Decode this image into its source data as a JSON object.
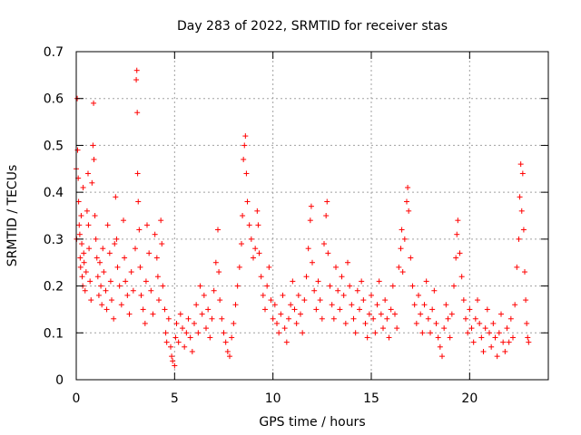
{
  "chart_data": {
    "type": "scatter",
    "title": "Day 283 of 2022, SRMTID for receiver stas",
    "xlabel": "GPS time / hours",
    "ylabel": "SRMTID / TECUs",
    "xlim": [
      0,
      24
    ],
    "ylim": [
      0,
      0.7
    ],
    "xticks": [
      0,
      5,
      10,
      15,
      20
    ],
    "yticks": [
      0,
      0.1,
      0.2,
      0.3,
      0.4,
      0.5,
      0.6,
      0.7
    ],
    "xtick_labels": [
      "0",
      "5",
      "10",
      "15",
      "20"
    ],
    "ytick_labels": [
      "0",
      "0.1",
      "0.2",
      "0.3",
      "0.4",
      "0.5",
      "0.6",
      "0.7"
    ],
    "grid": true,
    "marker": "+",
    "color": "#ff0000",
    "series": [
      {
        "name": "stas",
        "points": [
          [
            0.0,
            0.45
          ],
          [
            0.02,
            0.3
          ],
          [
            0.05,
            0.6
          ],
          [
            0.07,
            0.49
          ],
          [
            0.1,
            0.43
          ],
          [
            0.12,
            0.38
          ],
          [
            0.15,
            0.33
          ],
          [
            0.18,
            0.31
          ],
          [
            0.2,
            0.26
          ],
          [
            0.22,
            0.24
          ],
          [
            0.25,
            0.35
          ],
          [
            0.28,
            0.29
          ],
          [
            0.3,
            0.22
          ],
          [
            0.33,
            0.2
          ],
          [
            0.35,
            0.41
          ],
          [
            0.38,
            0.27
          ],
          [
            0.4,
            0.25
          ],
          [
            0.45,
            0.19
          ],
          [
            0.5,
            0.23
          ],
          [
            0.55,
            0.36
          ],
          [
            0.6,
            0.44
          ],
          [
            0.62,
            0.33
          ],
          [
            0.65,
            0.28
          ],
          [
            0.7,
            0.21
          ],
          [
            0.75,
            0.17
          ],
          [
            0.8,
            0.42
          ],
          [
            0.85,
            0.5
          ],
          [
            0.88,
            0.59
          ],
          [
            0.9,
            0.47
          ],
          [
            0.95,
            0.35
          ],
          [
            1.0,
            0.3
          ],
          [
            1.05,
            0.26
          ],
          [
            1.1,
            0.22
          ],
          [
            1.15,
            0.18
          ],
          [
            1.2,
            0.25
          ],
          [
            1.25,
            0.2
          ],
          [
            1.3,
            0.16
          ],
          [
            1.35,
            0.28
          ],
          [
            1.4,
            0.23
          ],
          [
            1.5,
            0.19
          ],
          [
            1.55,
            0.15
          ],
          [
            1.6,
            0.33
          ],
          [
            1.7,
            0.27
          ],
          [
            1.75,
            0.21
          ],
          [
            1.8,
            0.17
          ],
          [
            1.9,
            0.13
          ],
          [
            1.95,
            0.29
          ],
          [
            2.0,
            0.39
          ],
          [
            2.05,
            0.3
          ],
          [
            2.1,
            0.24
          ],
          [
            2.2,
            0.2
          ],
          [
            2.3,
            0.16
          ],
          [
            2.4,
            0.34
          ],
          [
            2.45,
            0.26
          ],
          [
            2.5,
            0.21
          ],
          [
            2.6,
            0.18
          ],
          [
            2.7,
            0.14
          ],
          [
            2.8,
            0.23
          ],
          [
            2.9,
            0.19
          ],
          [
            3.0,
            0.28
          ],
          [
            3.05,
            0.64
          ],
          [
            3.08,
            0.66
          ],
          [
            3.1,
            0.57
          ],
          [
            3.12,
            0.44
          ],
          [
            3.15,
            0.38
          ],
          [
            3.2,
            0.32
          ],
          [
            3.25,
            0.24
          ],
          [
            3.3,
            0.18
          ],
          [
            3.4,
            0.15
          ],
          [
            3.5,
            0.12
          ],
          [
            3.55,
            0.21
          ],
          [
            3.6,
            0.33
          ],
          [
            3.7,
            0.27
          ],
          [
            3.8,
            0.19
          ],
          [
            3.9,
            0.14
          ],
          [
            4.0,
            0.31
          ],
          [
            4.1,
            0.26
          ],
          [
            4.15,
            0.22
          ],
          [
            4.2,
            0.17
          ],
          [
            4.3,
            0.34
          ],
          [
            4.35,
            0.29
          ],
          [
            4.4,
            0.2
          ],
          [
            4.5,
            0.15
          ],
          [
            4.55,
            0.1
          ],
          [
            4.6,
            0.08
          ],
          [
            4.7,
            0.13
          ],
          [
            4.8,
            0.07
          ],
          [
            4.85,
            0.05
          ],
          [
            4.9,
            0.04
          ],
          [
            5.0,
            0.03
          ],
          [
            5.05,
            0.09
          ],
          [
            5.1,
            0.12
          ],
          [
            5.2,
            0.08
          ],
          [
            5.3,
            0.14
          ],
          [
            5.4,
            0.11
          ],
          [
            5.5,
            0.07
          ],
          [
            5.6,
            0.1
          ],
          [
            5.7,
            0.13
          ],
          [
            5.8,
            0.09
          ],
          [
            5.9,
            0.06
          ],
          [
            6.0,
            0.12
          ],
          [
            6.1,
            0.16
          ],
          [
            6.2,
            0.1
          ],
          [
            6.3,
            0.2
          ],
          [
            6.4,
            0.14
          ],
          [
            6.5,
            0.18
          ],
          [
            6.6,
            0.11
          ],
          [
            6.7,
            0.15
          ],
          [
            6.8,
            0.09
          ],
          [
            6.9,
            0.13
          ],
          [
            7.0,
            0.19
          ],
          [
            7.1,
            0.25
          ],
          [
            7.2,
            0.32
          ],
          [
            7.25,
            0.23
          ],
          [
            7.3,
            0.17
          ],
          [
            7.4,
            0.13
          ],
          [
            7.5,
            0.1
          ],
          [
            7.6,
            0.08
          ],
          [
            7.7,
            0.06
          ],
          [
            7.8,
            0.05
          ],
          [
            7.9,
            0.09
          ],
          [
            8.0,
            0.12
          ],
          [
            8.1,
            0.16
          ],
          [
            8.2,
            0.2
          ],
          [
            8.3,
            0.24
          ],
          [
            8.4,
            0.29
          ],
          [
            8.45,
            0.35
          ],
          [
            8.5,
            0.47
          ],
          [
            8.55,
            0.5
          ],
          [
            8.6,
            0.52
          ],
          [
            8.65,
            0.44
          ],
          [
            8.7,
            0.38
          ],
          [
            8.8,
            0.33
          ],
          [
            8.9,
            0.3
          ],
          [
            9.0,
            0.26
          ],
          [
            9.1,
            0.28
          ],
          [
            9.2,
            0.36
          ],
          [
            9.25,
            0.33
          ],
          [
            9.3,
            0.27
          ],
          [
            9.4,
            0.22
          ],
          [
            9.5,
            0.18
          ],
          [
            9.6,
            0.15
          ],
          [
            9.7,
            0.2
          ],
          [
            9.8,
            0.24
          ],
          [
            9.9,
            0.17
          ],
          [
            10.0,
            0.13
          ],
          [
            10.1,
            0.16
          ],
          [
            10.2,
            0.12
          ],
          [
            10.3,
            0.1
          ],
          [
            10.4,
            0.14
          ],
          [
            10.5,
            0.18
          ],
          [
            10.6,
            0.11
          ],
          [
            10.7,
            0.08
          ],
          [
            10.8,
            0.13
          ],
          [
            10.9,
            0.16
          ],
          [
            11.0,
            0.21
          ],
          [
            11.1,
            0.15
          ],
          [
            11.2,
            0.12
          ],
          [
            11.3,
            0.18
          ],
          [
            11.4,
            0.14
          ],
          [
            11.5,
            0.1
          ],
          [
            11.6,
            0.17
          ],
          [
            11.7,
            0.22
          ],
          [
            11.8,
            0.28
          ],
          [
            11.9,
            0.34
          ],
          [
            11.95,
            0.37
          ],
          [
            12.0,
            0.25
          ],
          [
            12.1,
            0.19
          ],
          [
            12.2,
            0.15
          ],
          [
            12.3,
            0.21
          ],
          [
            12.4,
            0.17
          ],
          [
            12.5,
            0.13
          ],
          [
            12.6,
            0.29
          ],
          [
            12.7,
            0.35
          ],
          [
            12.75,
            0.38
          ],
          [
            12.8,
            0.27
          ],
          [
            12.9,
            0.2
          ],
          [
            13.0,
            0.16
          ],
          [
            13.1,
            0.13
          ],
          [
            13.2,
            0.24
          ],
          [
            13.3,
            0.19
          ],
          [
            13.4,
            0.15
          ],
          [
            13.5,
            0.22
          ],
          [
            13.6,
            0.18
          ],
          [
            13.7,
            0.12
          ],
          [
            13.8,
            0.25
          ],
          [
            13.9,
            0.2
          ],
          [
            14.0,
            0.16
          ],
          [
            14.1,
            0.13
          ],
          [
            14.2,
            0.1
          ],
          [
            14.3,
            0.19
          ],
          [
            14.4,
            0.15
          ],
          [
            14.5,
            0.21
          ],
          [
            14.6,
            0.17
          ],
          [
            14.7,
            0.12
          ],
          [
            14.8,
            0.09
          ],
          [
            14.9,
            0.14
          ],
          [
            15.0,
            0.18
          ],
          [
            15.1,
            0.13
          ],
          [
            15.2,
            0.1
          ],
          [
            15.3,
            0.16
          ],
          [
            15.4,
            0.21
          ],
          [
            15.5,
            0.14
          ],
          [
            15.6,
            0.11
          ],
          [
            15.7,
            0.17
          ],
          [
            15.8,
            0.13
          ],
          [
            15.9,
            0.09
          ],
          [
            16.0,
            0.15
          ],
          [
            16.1,
            0.2
          ],
          [
            16.2,
            0.14
          ],
          [
            16.3,
            0.11
          ],
          [
            16.4,
            0.24
          ],
          [
            16.5,
            0.28
          ],
          [
            16.55,
            0.32
          ],
          [
            16.6,
            0.23
          ],
          [
            16.7,
            0.3
          ],
          [
            16.8,
            0.38
          ],
          [
            16.85,
            0.41
          ],
          [
            16.9,
            0.36
          ],
          [
            17.0,
            0.26
          ],
          [
            17.1,
            0.2
          ],
          [
            17.2,
            0.16
          ],
          [
            17.3,
            0.12
          ],
          [
            17.4,
            0.18
          ],
          [
            17.5,
            0.14
          ],
          [
            17.6,
            0.1
          ],
          [
            17.7,
            0.16
          ],
          [
            17.8,
            0.21
          ],
          [
            17.9,
            0.13
          ],
          [
            18.0,
            0.1
          ],
          [
            18.1,
            0.15
          ],
          [
            18.2,
            0.19
          ],
          [
            18.3,
            0.12
          ],
          [
            18.4,
            0.09
          ],
          [
            18.5,
            0.07
          ],
          [
            18.6,
            0.05
          ],
          [
            18.7,
            0.11
          ],
          [
            18.8,
            0.16
          ],
          [
            18.9,
            0.13
          ],
          [
            19.0,
            0.09
          ],
          [
            19.1,
            0.14
          ],
          [
            19.2,
            0.2
          ],
          [
            19.3,
            0.26
          ],
          [
            19.35,
            0.31
          ],
          [
            19.4,
            0.34
          ],
          [
            19.5,
            0.27
          ],
          [
            19.6,
            0.22
          ],
          [
            19.7,
            0.17
          ],
          [
            19.8,
            0.13
          ],
          [
            19.9,
            0.1
          ],
          [
            20.0,
            0.15
          ],
          [
            20.1,
            0.11
          ],
          [
            20.2,
            0.08
          ],
          [
            20.3,
            0.13
          ],
          [
            20.4,
            0.17
          ],
          [
            20.5,
            0.12
          ],
          [
            20.6,
            0.09
          ],
          [
            20.7,
            0.06
          ],
          [
            20.8,
            0.11
          ],
          [
            20.9,
            0.15
          ],
          [
            21.0,
            0.1
          ],
          [
            21.1,
            0.07
          ],
          [
            21.2,
            0.12
          ],
          [
            21.3,
            0.09
          ],
          [
            21.4,
            0.05
          ],
          [
            21.5,
            0.1
          ],
          [
            21.6,
            0.14
          ],
          [
            21.7,
            0.08
          ],
          [
            21.8,
            0.06
          ],
          [
            21.9,
            0.11
          ],
          [
            22.0,
            0.08
          ],
          [
            22.1,
            0.13
          ],
          [
            22.2,
            0.09
          ],
          [
            22.3,
            0.16
          ],
          [
            22.4,
            0.24
          ],
          [
            22.5,
            0.3
          ],
          [
            22.55,
            0.39
          ],
          [
            22.6,
            0.46
          ],
          [
            22.65,
            0.36
          ],
          [
            22.7,
            0.44
          ],
          [
            22.75,
            0.32
          ],
          [
            22.8,
            0.23
          ],
          [
            22.85,
            0.17
          ],
          [
            22.9,
            0.12
          ],
          [
            22.95,
            0.09
          ],
          [
            23.0,
            0.08
          ]
        ]
      }
    ]
  }
}
